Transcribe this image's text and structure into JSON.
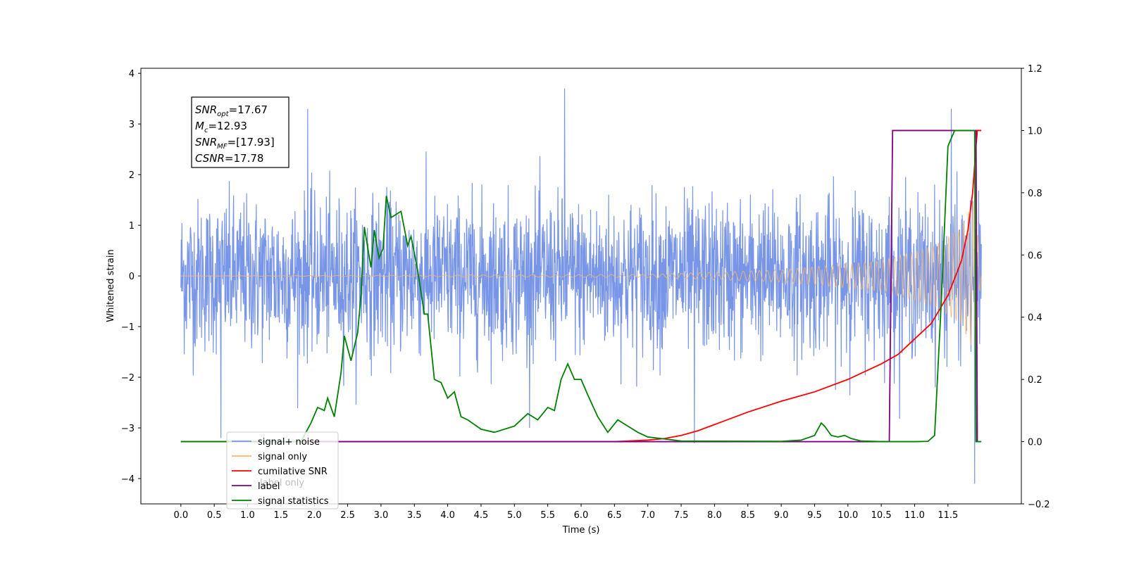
{
  "chart_data": {
    "type": "line",
    "xlabel": "Time (s)",
    "ylabel": "Whitened strain",
    "xlim": [
      -0.6,
      12.6
    ],
    "ylim": [
      -4.5,
      4.1
    ],
    "ylim_right": [
      -0.2,
      1.2
    ],
    "x_ticks": [
      0.0,
      0.5,
      1.0,
      1.5,
      2.0,
      2.5,
      3.0,
      3.5,
      4.0,
      4.5,
      5.0,
      5.5,
      6.0,
      6.5,
      7.0,
      7.5,
      8.0,
      8.5,
      9.0,
      9.5,
      10.0,
      10.5,
      11.0,
      11.5
    ],
    "x_tick_labels": [
      "0.0",
      "0.5",
      "1.0",
      "1.5",
      "2.0",
      "2.5",
      "3.0",
      "3.5",
      "4.0",
      "4.5",
      "5.0",
      "5.5",
      "6.0",
      "6.5",
      "7.0",
      "7.5",
      "8.0",
      "8.5",
      "9.0",
      "9.5",
      "10.0",
      "10.5",
      "11.0",
      "11.5"
    ],
    "y_ticks": [
      4,
      3,
      2,
      1,
      0,
      -1,
      -2,
      -3,
      -4
    ],
    "y_tick_labels": [
      "4",
      "3",
      "2",
      "1",
      "0",
      "−1",
      "−2",
      "−3",
      "−4"
    ],
    "y_right_ticks": [
      1.2,
      1.0,
      0.8,
      0.6,
      0.4,
      0.2,
      0.0,
      -0.2
    ],
    "y_right_tick_labels": [
      "1.2",
      "1.0",
      "0.8",
      "0.6",
      "0.4",
      "0.2",
      "0.0",
      "−0.2"
    ],
    "grid": false,
    "legend_position": "lower-left",
    "annotation": {
      "lines": [
        {
          "var": "SNR",
          "sub": "opt",
          "value": "=17.67"
        },
        {
          "var": "M",
          "sub": "c",
          "value": "=12.93"
        },
        {
          "var": "SNR",
          "sub": "MF",
          "value": "=[17.93]"
        },
        {
          "var": "CSNR",
          "sub": "",
          "value": "=17.78"
        }
      ]
    },
    "series": [
      {
        "name": "signal+ noise",
        "axis": "left",
        "color": "#7895e8",
        "kind": "noise",
        "x_range": [
          0.0,
          12.0
        ],
        "amplitude_typical": 1.5,
        "peak_values": [
          {
            "x": 5.75,
            "y": 3.7
          },
          {
            "x": 1.9,
            "y": 3.3
          },
          {
            "x": 11.55,
            "y": 3.3
          },
          {
            "x": 0.6,
            "y": -3.2
          },
          {
            "x": 11.9,
            "y": -4.1
          },
          {
            "x": 7.7,
            "y": -3.3
          }
        ]
      },
      {
        "name": "signal only",
        "axis": "left",
        "color": "#f5b66a",
        "kind": "chirp",
        "x_range": [
          0.0,
          12.0
        ],
        "envelope": [
          [
            0,
            0.0
          ],
          [
            7.0,
            0.03
          ],
          [
            9.0,
            0.12
          ],
          [
            10.5,
            0.3
          ],
          [
            11.3,
            0.6
          ],
          [
            11.7,
            0.95
          ],
          [
            11.9,
            1.55
          ],
          [
            12.0,
            0.0
          ]
        ]
      },
      {
        "name": "cumilative SNR",
        "axis": "right",
        "color": "#ff0000",
        "x": [
          0,
          6.5,
          7.0,
          7.25,
          7.5,
          7.75,
          8.0,
          8.5,
          9.0,
          9.5,
          10.0,
          10.5,
          10.75,
          11.0,
          11.25,
          11.5,
          11.7,
          11.8,
          11.87,
          11.92,
          11.94,
          11.96,
          12.0
        ],
        "values": [
          0,
          0,
          0.005,
          0.01,
          0.02,
          0.035,
          0.055,
          0.095,
          0.13,
          0.16,
          0.2,
          0.25,
          0.28,
          0.33,
          0.38,
          0.47,
          0.58,
          0.68,
          0.8,
          0.95,
          1.0,
          1.0,
          1.0
        ]
      },
      {
        "name": "label",
        "axis": "right",
        "color": "#800080",
        "x": [
          0,
          10.62,
          10.67,
          11.92,
          11.94
        ],
        "values": [
          0,
          0,
          1.0,
          1.0,
          0.0
        ]
      },
      {
        "name": "signal statistics",
        "axis": "right",
        "color": "#008000",
        "x": [
          0,
          1.8,
          1.95,
          2.05,
          2.15,
          2.2,
          2.3,
          2.4,
          2.45,
          2.55,
          2.65,
          2.7,
          2.75,
          2.85,
          2.9,
          2.97,
          3.03,
          3.08,
          3.15,
          3.3,
          3.4,
          3.45,
          3.55,
          3.65,
          3.7,
          3.8,
          3.9,
          4.0,
          4.1,
          4.2,
          4.3,
          4.5,
          4.7,
          5.0,
          5.2,
          5.35,
          5.5,
          5.6,
          5.7,
          5.8,
          5.9,
          6.0,
          6.1,
          6.25,
          6.4,
          6.55,
          6.7,
          6.85,
          7.0,
          7.2,
          7.5,
          9.0,
          9.3,
          9.5,
          9.6,
          9.65,
          9.75,
          9.85,
          9.95,
          10.05,
          10.2,
          10.5,
          11.0,
          11.2,
          11.3,
          11.4,
          11.5,
          11.6,
          11.7,
          11.8,
          11.9,
          11.92,
          12.0
        ],
        "values": [
          0,
          0,
          0.06,
          0.11,
          0.1,
          0.14,
          0.08,
          0.22,
          0.34,
          0.26,
          0.35,
          0.47,
          0.69,
          0.56,
          0.68,
          0.59,
          0.62,
          0.79,
          0.72,
          0.74,
          0.63,
          0.66,
          0.55,
          0.41,
          0.41,
          0.2,
          0.19,
          0.14,
          0.16,
          0.08,
          0.07,
          0.04,
          0.03,
          0.05,
          0.09,
          0.07,
          0.11,
          0.1,
          0.2,
          0.25,
          0.2,
          0.2,
          0.15,
          0.08,
          0.03,
          0.07,
          0.05,
          0.03,
          0.015,
          0.01,
          0.002,
          0.001,
          0.005,
          0.02,
          0.06,
          0.05,
          0.02,
          0.015,
          0.02,
          0.01,
          0.002,
          0.0,
          0.0,
          0.001,
          0.02,
          0.45,
          0.95,
          1.0,
          1.0,
          1.0,
          1.0,
          0.0,
          0.0
        ]
      }
    ],
    "legend": [
      {
        "label": "signal+ noise",
        "color": "#7895e8"
      },
      {
        "label": "signal only",
        "color": "#f5b66a"
      },
      {
        "label": "cumilative SNR",
        "color": "#ff0000"
      },
      {
        "label": "label",
        "color": "#800080"
      },
      {
        "label": "signal statistics",
        "color": "#008000"
      }
    ],
    "legend_hidden_text": "label only",
    "legend_hidden_text_color": "#bbbbbb"
  }
}
